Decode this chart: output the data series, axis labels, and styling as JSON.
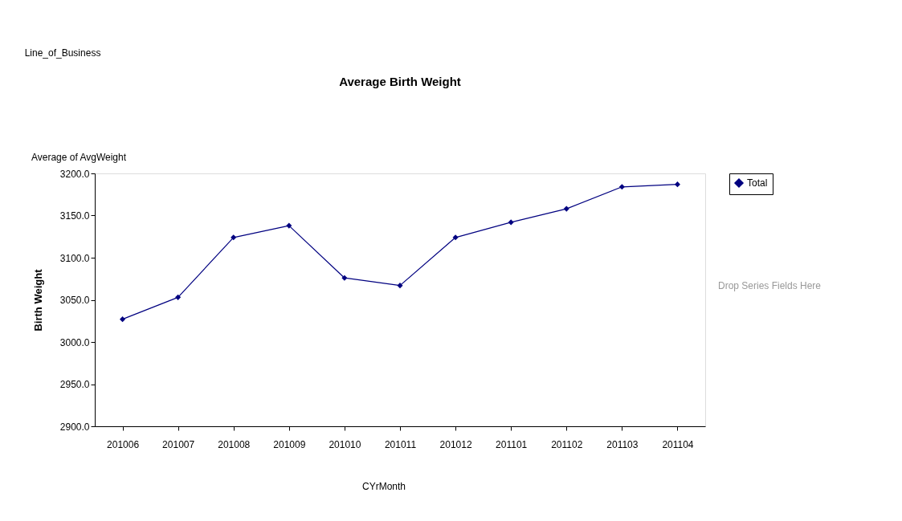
{
  "chart_data": {
    "type": "line",
    "title": "Average Birth Weight",
    "ylabel": "Birth Weight",
    "categories": [
      "201006",
      "201007",
      "201008",
      "201009",
      "201010",
      "201011",
      "201012",
      "201101",
      "201102",
      "201103",
      "201104"
    ],
    "series": [
      {
        "name": "Total",
        "color": "#000080",
        "values": [
          3027,
          3053,
          3124,
          3138,
          3076,
          3067,
          3124,
          3142,
          3158,
          3184,
          3187
        ]
      }
    ],
    "ylim": [
      2900,
      3200
    ],
    "yticks": [
      {
        "value": 2900,
        "label": "2900.0"
      },
      {
        "value": 2950,
        "label": "2950.0"
      },
      {
        "value": 3000,
        "label": "3000.0"
      },
      {
        "value": 3050,
        "label": "3050.0"
      },
      {
        "value": 3100,
        "label": "3100.0"
      },
      {
        "value": 3150,
        "label": "3150.0"
      },
      {
        "value": 3200,
        "label": "3200.0"
      }
    ],
    "annotations": [
      "Line_of_Business",
      "Average of AvgWeight",
      "Drop Series Fields Here",
      "CYrMonth"
    ],
    "grid": false,
    "legend": "right",
    "marker": "diamond",
    "line_style": "solid"
  }
}
